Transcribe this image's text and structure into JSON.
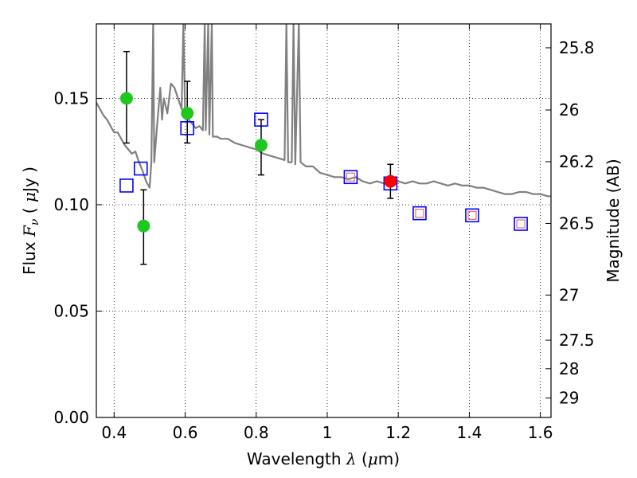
{
  "chart_data": {
    "type": "scatter",
    "xlabel": "Wavelength  λ (μm)",
    "xlabel_parts": {
      "text": "Wavelength  ",
      "symbol": "λ",
      "unit_open": " (",
      "unit_mu": "μ",
      "unit_close": "m)"
    },
    "ylabel": "Flux  Fν  ( μJy )",
    "ylabel_parts": {
      "text": "Flux  ",
      "sym_F": "F",
      "sym_nu": "ν",
      "open": "  ( ",
      "mu": "μ",
      "close": "Jy )"
    },
    "ylabel_right": "Magnitude (AB)",
    "xlim": [
      0.35,
      1.63
    ],
    "ylim": [
      0.0,
      0.185
    ],
    "grid": true,
    "x_ticks": [
      {
        "value": 0.4,
        "label": "0.4"
      },
      {
        "value": 0.6,
        "label": "0.6"
      },
      {
        "value": 0.8,
        "label": "0.8"
      },
      {
        "value": 1.0,
        "label": "1"
      },
      {
        "value": 1.2,
        "label": "1.2"
      },
      {
        "value": 1.4,
        "label": "1.4"
      },
      {
        "value": 1.6,
        "label": "1.6"
      }
    ],
    "y_ticks": [
      {
        "value": 0.0,
        "label": "0.00"
      },
      {
        "value": 0.05,
        "label": "0.05"
      },
      {
        "value": 0.1,
        "label": "0.10"
      },
      {
        "value": 0.15,
        "label": "0.15"
      }
    ],
    "right_ticks": [
      {
        "mag": 25.8,
        "label": "25.8"
      },
      {
        "mag": 26.0,
        "label": "26"
      },
      {
        "mag": 26.2,
        "label": "26.2"
      },
      {
        "mag": 26.5,
        "label": "26.5"
      },
      {
        "mag": 27.0,
        "label": "27"
      },
      {
        "mag": 27.5,
        "label": "27.5"
      },
      {
        "mag": 28.0,
        "label": "28"
      },
      {
        "mag": 29.0,
        "label": "29"
      }
    ],
    "colors": {
      "model": "#808080",
      "observed": "#1ec81e",
      "highlight": "#ff0000",
      "model_box": "#0000ff",
      "model_box_inner": "#e07070",
      "errorbar": "#000000"
    },
    "series": [
      {
        "name": "SED model",
        "kind": "line",
        "points": [
          [
            0.35,
            0.148
          ],
          [
            0.36,
            0.145
          ],
          [
            0.37,
            0.142
          ],
          [
            0.38,
            0.14
          ],
          [
            0.39,
            0.137
          ],
          [
            0.4,
            0.134
          ],
          [
            0.41,
            0.134
          ],
          [
            0.42,
            0.131
          ],
          [
            0.43,
            0.128
          ],
          [
            0.44,
            0.126
          ],
          [
            0.45,
            0.124
          ],
          [
            0.46,
            0.125
          ],
          [
            0.47,
            0.12
          ],
          [
            0.48,
            0.116
          ],
          [
            0.49,
            0.111
          ],
          [
            0.5,
            0.108
          ],
          [
            0.505,
            0.12
          ],
          [
            0.51,
            0.185
          ],
          [
            0.513,
            0.12
          ],
          [
            0.52,
            0.135
          ],
          [
            0.53,
            0.155
          ],
          [
            0.535,
            0.14
          ],
          [
            0.54,
            0.15
          ],
          [
            0.55,
            0.143
          ],
          [
            0.56,
            0.157
          ],
          [
            0.57,
            0.155
          ],
          [
            0.58,
            0.15
          ],
          [
            0.59,
            0.145
          ],
          [
            0.595,
            0.185
          ],
          [
            0.6,
            0.142
          ],
          [
            0.61,
            0.14
          ],
          [
            0.62,
            0.138
          ],
          [
            0.63,
            0.136
          ],
          [
            0.64,
            0.137
          ],
          [
            0.65,
            0.135
          ],
          [
            0.655,
            0.185
          ],
          [
            0.658,
            0.135
          ],
          [
            0.665,
            0.185
          ],
          [
            0.668,
            0.133
          ],
          [
            0.675,
            0.185
          ],
          [
            0.678,
            0.132
          ],
          [
            0.69,
            0.132
          ],
          [
            0.7,
            0.131
          ],
          [
            0.72,
            0.131
          ],
          [
            0.74,
            0.129
          ],
          [
            0.76,
            0.128
          ],
          [
            0.78,
            0.127
          ],
          [
            0.8,
            0.126
          ],
          [
            0.82,
            0.124
          ],
          [
            0.84,
            0.123
          ],
          [
            0.86,
            0.122
          ],
          [
            0.88,
            0.121
          ],
          [
            0.885,
            0.185
          ],
          [
            0.89,
            0.12
          ],
          [
            0.9,
            0.12
          ],
          [
            0.905,
            0.185
          ],
          [
            0.91,
            0.119
          ],
          [
            0.92,
            0.185
          ],
          [
            0.925,
            0.12
          ],
          [
            0.94,
            0.118
          ],
          [
            0.96,
            0.118
          ],
          [
            0.98,
            0.115
          ],
          [
            1.0,
            0.114
          ],
          [
            1.02,
            0.113
          ],
          [
            1.04,
            0.113
          ],
          [
            1.06,
            0.112
          ],
          [
            1.08,
            0.113
          ],
          [
            1.1,
            0.111
          ],
          [
            1.12,
            0.11
          ],
          [
            1.14,
            0.111
          ],
          [
            1.16,
            0.11
          ],
          [
            1.18,
            0.11
          ],
          [
            1.2,
            0.111
          ],
          [
            1.22,
            0.11
          ],
          [
            1.24,
            0.111
          ],
          [
            1.26,
            0.11
          ],
          [
            1.28,
            0.11
          ],
          [
            1.3,
            0.111
          ],
          [
            1.32,
            0.11
          ],
          [
            1.34,
            0.109
          ],
          [
            1.36,
            0.11
          ],
          [
            1.38,
            0.109
          ],
          [
            1.4,
            0.109
          ],
          [
            1.42,
            0.108
          ],
          [
            1.44,
            0.108
          ],
          [
            1.46,
            0.107
          ],
          [
            1.48,
            0.106
          ],
          [
            1.5,
            0.105
          ],
          [
            1.52,
            0.105
          ],
          [
            1.54,
            0.106
          ],
          [
            1.56,
            0.106
          ],
          [
            1.58,
            0.105
          ],
          [
            1.6,
            0.105
          ],
          [
            1.62,
            0.104
          ],
          [
            1.63,
            0.104
          ]
        ]
      },
      {
        "name": "Observed photometry",
        "kind": "points-with-errorbars",
        "points": [
          {
            "x": 0.435,
            "y": 0.15,
            "yerr_low": 0.129,
            "yerr_high": 0.172
          },
          {
            "x": 0.483,
            "y": 0.09,
            "yerr_low": 0.072,
            "yerr_high": 0.107
          },
          {
            "x": 0.606,
            "y": 0.143,
            "yerr_low": 0.129,
            "yerr_high": 0.158
          },
          {
            "x": 0.814,
            "y": 0.128,
            "yerr_low": 0.114,
            "yerr_high": 0.14
          }
        ]
      },
      {
        "name": "Highlighted detection",
        "kind": "points-with-errorbars",
        "points": [
          {
            "x": 1.178,
            "y": 0.111,
            "yerr_low": 0.103,
            "yerr_high": 0.119
          }
        ]
      },
      {
        "name": "Model band fluxes",
        "kind": "open-squares",
        "points": [
          {
            "x": 0.435,
            "y": 0.109,
            "inner": false
          },
          {
            "x": 0.475,
            "y": 0.117,
            "inner": false
          },
          {
            "x": 0.606,
            "y": 0.136,
            "inner": false
          },
          {
            "x": 0.814,
            "y": 0.14,
            "inner": false
          },
          {
            "x": 1.066,
            "y": 0.113,
            "inner": true
          },
          {
            "x": 1.178,
            "y": 0.11,
            "inner": false
          },
          {
            "x": 1.26,
            "y": 0.096,
            "inner": true
          },
          {
            "x": 1.408,
            "y": 0.095,
            "inner": true
          },
          {
            "x": 1.545,
            "y": 0.091,
            "inner": true
          }
        ]
      }
    ]
  }
}
